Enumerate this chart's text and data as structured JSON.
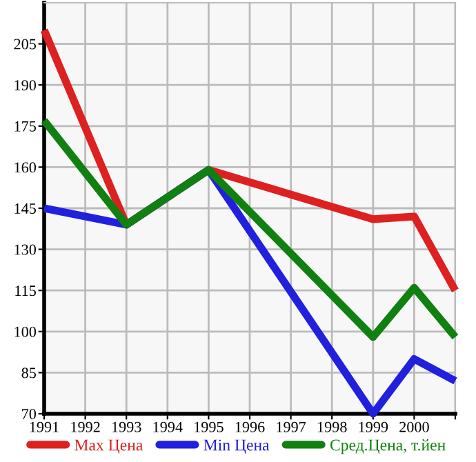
{
  "chart_data": {
    "type": "line",
    "x": [
      1991,
      1993,
      1995,
      1999,
      2000,
      2001
    ],
    "series": [
      {
        "name": "Max Цена",
        "color": "#dd2020",
        "values": [
          210,
          139,
          159,
          141,
          142,
          115
        ]
      },
      {
        "name": "Min Цена",
        "color": "#2020dd",
        "values": [
          145,
          139,
          159,
          70,
          90,
          82
        ]
      },
      {
        "name": "Сред.Цена, т.йен",
        "color": "#108010",
        "values": [
          177,
          139,
          159,
          98,
          116,
          98
        ]
      }
    ],
    "xlim": [
      1991,
      2001
    ],
    "ylim": [
      70,
      220
    ],
    "xticks": [
      1991,
      1992,
      1993,
      1994,
      1995,
      1996,
      1997,
      1998,
      1999,
      2000,
      {
        "value": 2001,
        "label": null
      }
    ],
    "yticks": [
      70,
      85,
      100,
      115,
      130,
      145,
      160,
      175,
      190,
      205
    ],
    "grid": true,
    "legend": "bottom",
    "marker": "none",
    "line_style": "solid"
  }
}
